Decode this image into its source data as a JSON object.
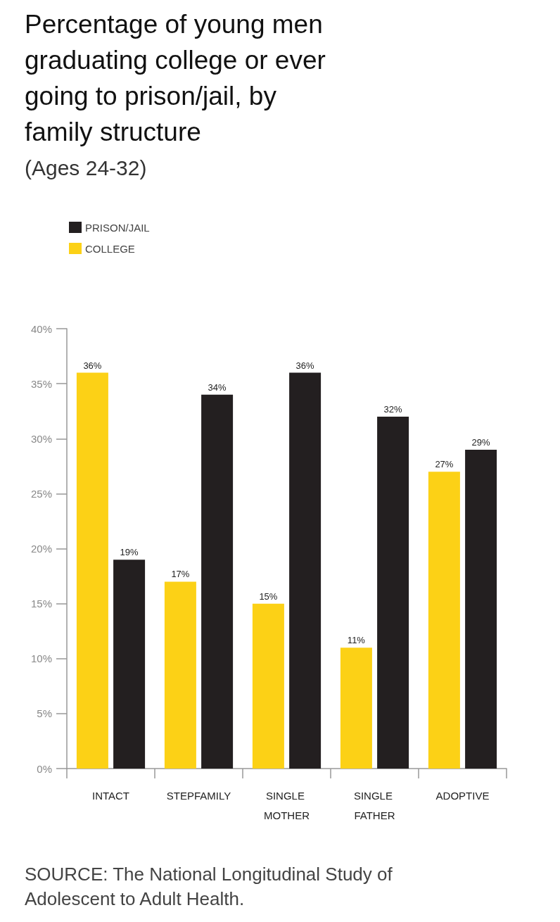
{
  "chart_data": {
    "type": "bar",
    "title": "Percentage of young men graduating college or ever going to prison/jail, by family structure",
    "subtitle": "(Ages 24-32)",
    "categories": [
      "INTACT",
      "STEPFAMILY",
      "SINGLE MOTHER",
      "SINGLE FATHER",
      "ADOPTIVE"
    ],
    "series": [
      {
        "name": "COLLEGE",
        "color": "#fcd116",
        "values": [
          36,
          17,
          15,
          11,
          27
        ],
        "value_labels": [
          "36%",
          "17%",
          "15%",
          "11%",
          "27%"
        ]
      },
      {
        "name": "PRISON/JAIL",
        "color": "#231f20",
        "values": [
          19,
          34,
          36,
          32,
          29
        ],
        "value_labels": [
          "19%",
          "34%",
          "36%",
          "32%",
          "29%"
        ]
      }
    ],
    "ylim": [
      0,
      40
    ],
    "yticks": [
      {
        "value": 0,
        "label": "0%"
      },
      {
        "value": 5,
        "label": "5%"
      },
      {
        "value": 10,
        "label": "10%"
      },
      {
        "value": 15,
        "label": "15%"
      },
      {
        "value": 20,
        "label": "20%"
      },
      {
        "value": 25,
        "label": "25%"
      },
      {
        "value": 30,
        "label": "30%"
      },
      {
        "value": 35,
        "label": "35%"
      },
      {
        "value": 40,
        "label": "40%"
      }
    ],
    "grid": false,
    "legend": "top left",
    "annotations": [
      "SOURCE: The National Longitudinal Study of Adolescent to Adult Health."
    ]
  }
}
